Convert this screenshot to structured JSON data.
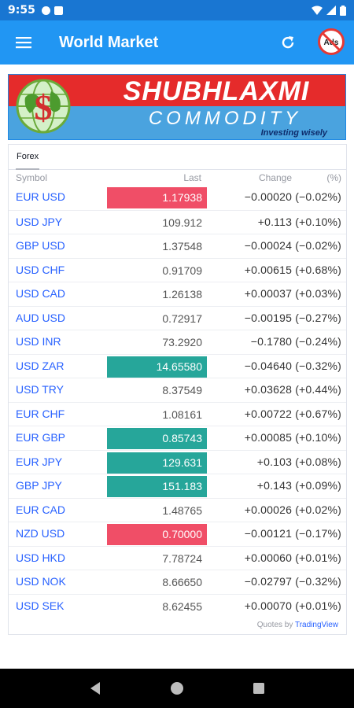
{
  "status_bar": {
    "time": "9:55"
  },
  "app_bar": {
    "title": "World Market"
  },
  "banner": {
    "brand": "SHUBHLAXMI",
    "subtitle": "COMMODITY",
    "tagline": "Investing wisely",
    "logo_glyph": "$"
  },
  "ads_icon_label": "Ads",
  "widget": {
    "tab": "Forex",
    "headers": {
      "symbol": "Symbol",
      "last": "Last",
      "change": "Change",
      "percent": "(%)"
    },
    "rows": [
      {
        "symbol": "EUR USD",
        "last": "1.17938",
        "change": "−0.00020 (−0.02%)",
        "highlight": "down"
      },
      {
        "symbol": "USD JPY",
        "last": "109.912",
        "change": "+0.113 (+0.10%)",
        "highlight": "none"
      },
      {
        "symbol": "GBP USD",
        "last": "1.37548",
        "change": "−0.00024 (−0.02%)",
        "highlight": "none"
      },
      {
        "symbol": "USD CHF",
        "last": "0.91709",
        "change": "+0.00615 (+0.68%)",
        "highlight": "none"
      },
      {
        "symbol": "USD CAD",
        "last": "1.26138",
        "change": "+0.00037 (+0.03%)",
        "highlight": "none"
      },
      {
        "symbol": "AUD USD",
        "last": "0.72917",
        "change": "−0.00195 (−0.27%)",
        "highlight": "none"
      },
      {
        "symbol": "USD INR",
        "last": "73.2920",
        "change": "−0.1780 (−0.24%)",
        "highlight": "none"
      },
      {
        "symbol": "USD ZAR",
        "last": "14.65580",
        "change": "−0.04640 (−0.32%)",
        "highlight": "up"
      },
      {
        "symbol": "USD TRY",
        "last": "8.37549",
        "change": "+0.03628 (+0.44%)",
        "highlight": "none"
      },
      {
        "symbol": "EUR CHF",
        "last": "1.08161",
        "change": "+0.00722 (+0.67%)",
        "highlight": "none"
      },
      {
        "symbol": "EUR GBP",
        "last": "0.85743",
        "change": "+0.00085 (+0.10%)",
        "highlight": "up"
      },
      {
        "symbol": "EUR JPY",
        "last": "129.631",
        "change": "+0.103 (+0.08%)",
        "highlight": "up"
      },
      {
        "symbol": "GBP JPY",
        "last": "151.183",
        "change": "+0.143 (+0.09%)",
        "highlight": "up"
      },
      {
        "symbol": "EUR CAD",
        "last": "1.48765",
        "change": "+0.00026 (+0.02%)",
        "highlight": "none"
      },
      {
        "symbol": "NZD USD",
        "last": "0.70000",
        "change": "−0.00121 (−0.17%)",
        "highlight": "down"
      },
      {
        "symbol": "USD HKD",
        "last": "7.78724",
        "change": "+0.00060 (+0.01%)",
        "highlight": "none"
      },
      {
        "symbol": "USD NOK",
        "last": "8.66650",
        "change": "−0.02797 (−0.32%)",
        "highlight": "none"
      },
      {
        "symbol": "USD SEK",
        "last": "8.62455",
        "change": "+0.00070 (+0.01%)",
        "highlight": "none"
      }
    ],
    "credit_prefix": "Quotes by",
    "credit_link": "TradingView"
  },
  "colors": {
    "app_bar": "#2196f3",
    "status_bar": "#1976d2",
    "up": "#26a69a",
    "down": "#f04e67",
    "link": "#2962ff"
  },
  "icons": {
    "menu": "hamburger-icon",
    "refresh": "refresh-icon",
    "ads": "no-ads-icon",
    "nav_back": "back-triangle-icon",
    "nav_home": "home-circle-icon",
    "nav_recents": "recents-square-icon"
  }
}
